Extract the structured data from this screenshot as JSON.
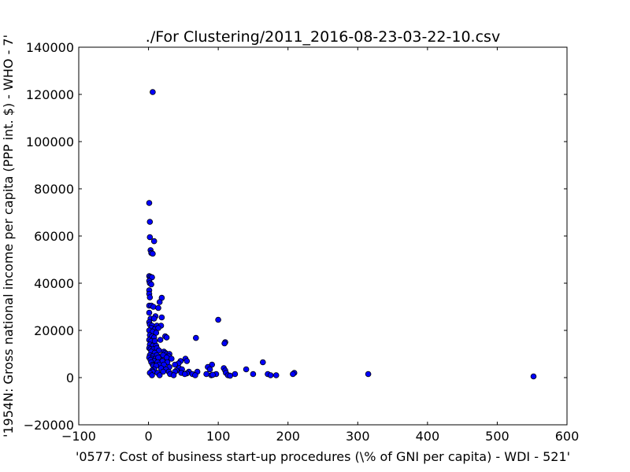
{
  "chart_data": {
    "type": "scatter",
    "title": "./For Clustering/2011_2016-08-23-03-22-10.csv",
    "xlabel": "'0577: Cost of business start-up procedures  (\\% of GNI per capita) - WDI - 521'",
    "ylabel": "'1954N: Gross national income per capita (PPP int. $) - WHO - 7'",
    "xlim": [
      -100,
      600
    ],
    "ylim": [
      -20000,
      140000
    ],
    "xticks": [
      -100,
      0,
      100,
      200,
      300,
      400,
      500,
      600
    ],
    "yticks": [
      -20000,
      0,
      20000,
      40000,
      60000,
      80000,
      100000,
      120000,
      140000
    ],
    "xtick_labels": [
      "−100",
      "0",
      "100",
      "200",
      "300",
      "400",
      "500",
      "600"
    ],
    "ytick_labels": [
      "−20000",
      "0",
      "20000",
      "40000",
      "60000",
      "80000",
      "100000",
      "120000",
      "140000"
    ],
    "grid": false,
    "marker_color": "#0000ff",
    "marker_edge": "#000000",
    "points": [
      [
        6,
        121000
      ],
      [
        1,
        74000
      ],
      [
        2,
        66000
      ],
      [
        2,
        59500
      ],
      [
        8,
        57800
      ],
      [
        3,
        54000
      ],
      [
        4,
        52800
      ],
      [
        6,
        52500
      ],
      [
        1,
        43000
      ],
      [
        3,
        42700
      ],
      [
        5,
        42500
      ],
      [
        1,
        41000
      ],
      [
        2,
        40000
      ],
      [
        4,
        39500
      ],
      [
        1,
        37000
      ],
      [
        1,
        35500
      ],
      [
        2,
        34000
      ],
      [
        19,
        33800
      ],
      [
        16,
        32000
      ],
      [
        1,
        30500
      ],
      [
        4,
        30500
      ],
      [
        7,
        30000
      ],
      [
        14,
        29500
      ],
      [
        1,
        27500
      ],
      [
        10,
        26000
      ],
      [
        3,
        25000
      ],
      [
        8,
        25000
      ],
      [
        19,
        25500
      ],
      [
        100,
        24500
      ],
      [
        1,
        23500
      ],
      [
        2,
        22500
      ],
      [
        5,
        22000
      ],
      [
        12,
        22000
      ],
      [
        18,
        22000
      ],
      [
        4,
        21000
      ],
      [
        9,
        20500
      ],
      [
        14,
        21000
      ],
      [
        1,
        20000
      ],
      [
        6,
        19500
      ],
      [
        11,
        19000
      ],
      [
        2,
        18000
      ],
      [
        5,
        17500
      ],
      [
        8,
        17000
      ],
      [
        24,
        17500
      ],
      [
        26,
        17000
      ],
      [
        68,
        16800
      ],
      [
        1,
        16000
      ],
      [
        4,
        15500
      ],
      [
        9,
        15500
      ],
      [
        17,
        16000
      ],
      [
        110,
        15000
      ],
      [
        109,
        14500
      ],
      [
        2,
        14000
      ],
      [
        6,
        13500
      ],
      [
        11,
        13500
      ],
      [
        1,
        12500
      ],
      [
        3,
        12000
      ],
      [
        7,
        12000
      ],
      [
        12,
        12500
      ],
      [
        15,
        11500
      ],
      [
        4,
        11000
      ],
      [
        9,
        10500
      ],
      [
        22,
        11000
      ],
      [
        24,
        10500
      ],
      [
        26,
        10000
      ],
      [
        30,
        10000
      ],
      [
        2,
        9500
      ],
      [
        6,
        9000
      ],
      [
        12,
        9500
      ],
      [
        18,
        9000
      ],
      [
        21,
        9500
      ],
      [
        29,
        9000
      ],
      [
        1,
        8500
      ],
      [
        5,
        8000
      ],
      [
        10,
        8000
      ],
      [
        14,
        8500
      ],
      [
        26,
        8500
      ],
      [
        33,
        8000
      ],
      [
        53,
        8000
      ],
      [
        3,
        7500
      ],
      [
        8,
        7000
      ],
      [
        20,
        7000
      ],
      [
        46,
        7000
      ],
      [
        55,
        7000
      ],
      [
        4,
        6500
      ],
      [
        13,
        6500
      ],
      [
        27,
        6500
      ],
      [
        43,
        6000
      ],
      [
        164,
        6500
      ],
      [
        6,
        5500
      ],
      [
        15,
        5500
      ],
      [
        22,
        5500
      ],
      [
        38,
        5500
      ],
      [
        91,
        5500
      ],
      [
        7,
        5000
      ],
      [
        11,
        5000
      ],
      [
        85,
        4500
      ],
      [
        30,
        4500
      ],
      [
        18,
        4000
      ],
      [
        44,
        4000
      ],
      [
        108,
        4000
      ],
      [
        140,
        3500
      ],
      [
        8,
        3500
      ],
      [
        25,
        3500
      ],
      [
        48,
        3500
      ],
      [
        88,
        3500
      ],
      [
        5,
        3000
      ],
      [
        40,
        3000
      ],
      [
        110,
        3000
      ],
      [
        6,
        2500
      ],
      [
        21,
        2500
      ],
      [
        29,
        2500
      ],
      [
        38,
        2500
      ],
      [
        58,
        2500
      ],
      [
        70,
        2500
      ],
      [
        111,
        2000
      ],
      [
        209,
        2000
      ],
      [
        2,
        2000
      ],
      [
        13,
        2000
      ],
      [
        47,
        2000
      ],
      [
        55,
        1800
      ],
      [
        207,
        1500
      ],
      [
        31,
        1500
      ],
      [
        52,
        1500
      ],
      [
        63,
        1500
      ],
      [
        83,
        1500
      ],
      [
        97,
        1500
      ],
      [
        124,
        1500
      ],
      [
        150,
        1500
      ],
      [
        171,
        1500
      ],
      [
        315,
        1500
      ],
      [
        5,
        1000
      ],
      [
        16,
        1000
      ],
      [
        36,
        1000
      ],
      [
        67,
        1000
      ],
      [
        90,
        1000
      ],
      [
        114,
        1000
      ],
      [
        117,
        800
      ],
      [
        175,
        1000
      ],
      [
        183,
        1000
      ],
      [
        92,
        1200
      ],
      [
        552,
        500
      ]
    ]
  }
}
